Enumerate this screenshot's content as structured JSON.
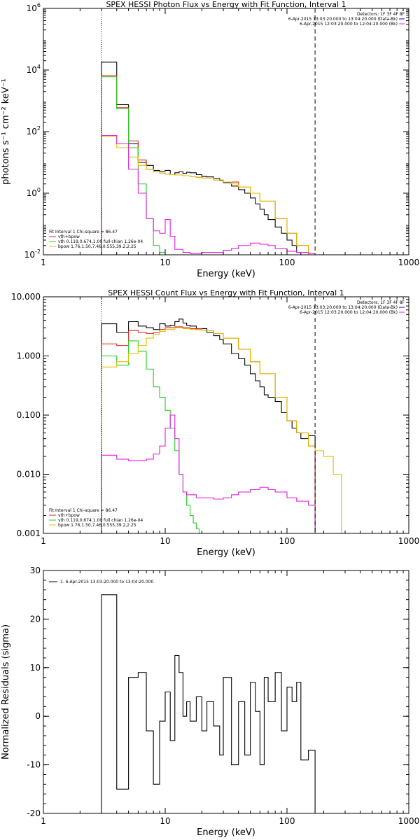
{
  "chart_data": [
    {
      "type": "line",
      "title": "SPEX HESSI Photon Flux vs Energy with Fit Function, Interval 1",
      "xlabel": "Energy (keV)",
      "ylabel": "photons s⁻¹ cm⁻² keV⁻¹",
      "xscale": "log",
      "yscale": "log",
      "xlim": [
        1,
        1000
      ],
      "ylim": [
        0.01,
        1000000
      ],
      "xticks": [
        "1",
        "10",
        "100",
        "1000"
      ],
      "yticks": [
        {
          "value": 0.01,
          "base": "10",
          "exp": "-2"
        },
        {
          "value": 1,
          "base": "10",
          "exp": "0"
        },
        {
          "value": 100,
          "base": "10",
          "exp": "2"
        },
        {
          "value": 10000,
          "base": "10",
          "exp": "4"
        },
        {
          "value": 1000000,
          "base": "10",
          "exp": "6"
        }
      ],
      "vlines": [
        {
          "x": 3,
          "style": "dotted"
        },
        {
          "x": 170,
          "style": "dashed"
        }
      ],
      "legend_top": {
        "header": "Detectors: 1F 3F 4F 8F",
        "entries": [
          {
            "text": "6-Apr-2015 13:03:20.000 to 13:04:20.000 (Data-Bk)",
            "color": "#0000ff"
          },
          {
            "text": "6-Apr-2015 12:03:20.000 to 12:04:20.000 (Bk)",
            "color": "#e020e0"
          }
        ]
      },
      "legend_bottom": {
        "header": "Fit Interval 1    Chi-square = 86.47",
        "entries": [
          {
            "text": "vth+bpow",
            "color": "#e02020"
          },
          {
            "text": "vth 0.119,0.674,1.00   full chian 1.26e-04",
            "color": "#20d020"
          },
          {
            "text": "bpow 1.76,1.50,7.46,0.555,39.2,2.25",
            "color": "#e0c000"
          }
        ]
      },
      "series": [
        {
          "color": "#000000",
          "x": [
            3,
            4,
            5,
            6,
            7,
            8,
            9,
            10,
            11,
            12,
            13,
            14,
            15,
            16,
            18,
            20,
            22,
            25,
            28,
            30,
            35,
            40,
            45,
            50,
            55,
            60,
            65,
            70,
            80,
            90,
            100,
            110,
            120,
            130,
            150,
            170
          ],
          "y": [
            18000,
            750,
            40,
            10,
            8,
            5.5,
            5.2,
            5.5,
            4,
            4.6,
            5,
            4.4,
            4.8,
            4.6,
            4,
            3.5,
            3.4,
            3,
            2.6,
            2.2,
            1.7,
            1.3,
            1,
            0.7,
            0.45,
            0.3,
            0.2,
            0.14,
            0.08,
            0.05,
            0.03,
            0.02,
            0.012,
            0.008,
            0.005,
            0.01
          ]
        },
        {
          "color": "#e02020",
          "x": [
            3,
            4,
            5,
            6,
            7,
            8,
            9,
            10,
            11,
            12,
            14,
            16,
            18,
            20,
            25,
            30,
            40,
            50,
            60,
            80,
            100,
            120,
            150,
            170
          ],
          "y": [
            6500,
            600,
            50,
            12,
            6,
            5,
            4.5,
            4.2,
            4,
            3.9,
            3.7,
            3.5,
            3.3,
            3.1,
            2.7,
            2.3,
            1.6,
            1,
            0.55,
            0.15,
            0.05,
            0.02,
            0.008,
            0.005
          ]
        },
        {
          "color": "#20d020",
          "x": [
            3,
            4,
            5,
            6,
            7,
            8,
            9,
            10
          ],
          "y": [
            6000,
            550,
            30,
            2,
            0.15,
            0.02,
            0.012,
            0.01
          ]
        },
        {
          "color": "#e0c000",
          "x": [
            3,
            4,
            5,
            6,
            7,
            8,
            9,
            10,
            11,
            12,
            14,
            16,
            18,
            20,
            25,
            30,
            35,
            40,
            50,
            60,
            80,
            100,
            120,
            150,
            170,
            200,
            240,
            280
          ],
          "y": [
            70,
            30,
            15,
            8,
            6,
            5,
            4.5,
            4.2,
            4,
            3.9,
            3.7,
            3.5,
            3.3,
            3.1,
            2.7,
            2.3,
            2,
            1.6,
            1,
            0.55,
            0.15,
            0.05,
            0.02,
            0.008,
            0.005,
            0.004,
            0.002,
            0.01
          ]
        },
        {
          "color": "#e020e0",
          "x": [
            3,
            4,
            5,
            6,
            7,
            8,
            9,
            10,
            11,
            12,
            14,
            16,
            18,
            20,
            25,
            30,
            35,
            40,
            50,
            60,
            70,
            80,
            100,
            120,
            150,
            170
          ],
          "y": [
            75,
            40,
            6,
            1,
            0.15,
            0.06,
            0.05,
            0.14,
            0.04,
            0.015,
            0.012,
            0.011,
            0.011,
            0.012,
            0.012,
            0.014,
            0.016,
            0.02,
            0.024,
            0.022,
            0.02,
            0.016,
            0.013,
            0.012,
            0.011,
            0.01
          ]
        }
      ]
    },
    {
      "type": "line",
      "title": "SPEX HESSI Count Flux vs Energy with Fit Function, Interval 1",
      "xlabel": "Energy (keV)",
      "ylabel": "",
      "xscale": "log",
      "yscale": "log",
      "xlim": [
        1,
        1000
      ],
      "ylim": [
        0.001,
        10
      ],
      "xticks": [
        "1",
        "10",
        "100",
        "1000"
      ],
      "yticks": [
        {
          "value": 0.001,
          "label": "0.001"
        },
        {
          "value": 0.01,
          "label": "0.010"
        },
        {
          "value": 0.1,
          "label": "0.100"
        },
        {
          "value": 1,
          "label": "1.000"
        },
        {
          "value": 10,
          "label": "10.000"
        }
      ],
      "vlines": [
        {
          "x": 3,
          "style": "dotted"
        },
        {
          "x": 170,
          "style": "dashed"
        }
      ],
      "legend_top": {
        "header": "Detectors: 1F 3F 4F 8F",
        "entries": [
          {
            "text": "6-Apr-2015 13:03:20.000 to 13:04:20.000 (Data-Bk)",
            "color": "#0000ff"
          },
          {
            "text": "6-Apr-2015 12:03:20.000 to 12:04:20.000 (Bk)",
            "color": "#e020e0"
          }
        ]
      },
      "legend_bottom": {
        "header": "Fit Interval 1    Chi-square = 86.47",
        "entries": [
          {
            "text": "vth+bpow",
            "color": "#e02020"
          },
          {
            "text": "vth 0.119,0.674,1.00   full chian 1.26e-04",
            "color": "#20d020"
          },
          {
            "text": "bpow 1.76,1.50,7.46,0.555,39.2,2.25",
            "color": "#e0c000"
          }
        ]
      },
      "series": [
        {
          "color": "#000000",
          "x": [
            3,
            4,
            5,
            6,
            7,
            8,
            9,
            10,
            11,
            12,
            13,
            14,
            15,
            16,
            18,
            20,
            22,
            25,
            28,
            30,
            35,
            40,
            45,
            50,
            55,
            60,
            65,
            70,
            80,
            90,
            100,
            110,
            120,
            130,
            150,
            170
          ],
          "y": [
            3.5,
            2.5,
            3.8,
            3.2,
            3,
            2.8,
            3.5,
            3.2,
            3.3,
            3.8,
            4.2,
            3.6,
            3.3,
            3.2,
            2.8,
            2.9,
            2.5,
            2.2,
            1.9,
            1.6,
            1.1,
            0.9,
            0.7,
            0.5,
            0.38,
            0.3,
            0.22,
            0.2,
            0.17,
            0.11,
            0.08,
            0.06,
            0.05,
            0.04,
            0.045,
            0.001
          ]
        },
        {
          "color": "#e02020",
          "x": [
            3,
            4,
            5,
            6,
            7,
            8,
            9,
            10,
            12,
            14,
            16,
            20,
            25,
            30,
            40,
            50,
            60,
            80,
            100,
            120,
            150,
            170
          ],
          "y": [
            1.6,
            1.5,
            2.7,
            2.5,
            2.4,
            2.5,
            2.8,
            3,
            3.1,
            3,
            2.9,
            2.7,
            2.4,
            2,
            1.3,
            0.8,
            0.5,
            0.2,
            0.08,
            0.05,
            0.03,
            0.001
          ]
        },
        {
          "color": "#20d020",
          "x": [
            3,
            4,
            5,
            6,
            7,
            8,
            9,
            10,
            11,
            12,
            13,
            14,
            15,
            16,
            17,
            18,
            19
          ],
          "y": [
            1,
            0.7,
            1.8,
            1.2,
            0.6,
            0.3,
            0.2,
            0.12,
            0.06,
            0.025,
            0.01,
            0.005,
            0.003,
            0.002,
            0.0015,
            0.0012,
            0.001
          ]
        },
        {
          "color": "#e0c000",
          "x": [
            3,
            4,
            5,
            6,
            7,
            8,
            9,
            10,
            12,
            14,
            16,
            20,
            25,
            30,
            40,
            50,
            60,
            80,
            100,
            120,
            150,
            170,
            200,
            240,
            280
          ],
          "y": [
            0.65,
            0.8,
            1.1,
            1.5,
            2,
            2.3,
            2.6,
            2.8,
            3,
            2.9,
            2.8,
            2.7,
            2.4,
            2,
            1.3,
            0.8,
            0.5,
            0.2,
            0.08,
            0.05,
            0.03,
            0.025,
            0.02,
            0.01,
            0.001
          ]
        },
        {
          "color": "#e020e0",
          "x": [
            3,
            4,
            5,
            6,
            7,
            8,
            9,
            10,
            11,
            12,
            13,
            14,
            15,
            16,
            18,
            20,
            25,
            30,
            35,
            40,
            50,
            60,
            70,
            80,
            100,
            120,
            150,
            170
          ],
          "y": [
            0.021,
            0.018,
            0.017,
            0.017,
            0.018,
            0.022,
            0.03,
            0.06,
            0.1,
            0.04,
            0.01,
            0.005,
            0.0045,
            0.0045,
            0.004,
            0.004,
            0.0038,
            0.004,
            0.0045,
            0.005,
            0.0055,
            0.006,
            0.0055,
            0.005,
            0.004,
            0.0035,
            0.003,
            0.001
          ]
        }
      ]
    },
    {
      "type": "line",
      "title": "",
      "xlabel": "Energy (keV)",
      "ylabel": "Normalized Residuals (sigma)",
      "xscale": "log",
      "yscale": "linear",
      "xlim": [
        1,
        1000
      ],
      "ylim": [
        -20,
        30
      ],
      "xticks": [
        "1",
        "10",
        "100",
        "1000"
      ],
      "yticks": [
        {
          "value": -20,
          "label": "-20"
        },
        {
          "value": -10,
          "label": "-10"
        },
        {
          "value": 0,
          "label": "0"
        },
        {
          "value": 10,
          "label": "10"
        },
        {
          "value": 20,
          "label": "20"
        },
        {
          "value": 30,
          "label": "30"
        }
      ],
      "vlines": [],
      "legend_top": {
        "header": "",
        "entries": [
          {
            "text": "1.  6-Apr-2015 13:03:20.000 to 13:04:20.000",
            "color": "#000000"
          }
        ]
      },
      "legend_bottom": {
        "header": "",
        "entries": []
      },
      "series": [
        {
          "color": "#000000",
          "x": [
            3,
            4,
            5,
            6,
            7,
            8,
            9,
            10,
            11,
            12,
            13,
            14,
            15,
            16,
            18,
            20,
            22,
            25,
            28,
            30,
            35,
            40,
            45,
            50,
            55,
            60,
            65,
            70,
            80,
            90,
            100,
            110,
            120,
            130,
            150,
            170
          ],
          "y": [
            25,
            -15,
            8,
            9,
            -3,
            -14,
            -1,
            5,
            -5,
            12.5,
            9,
            0,
            3,
            -1,
            4,
            -3,
            3,
            -2,
            -8,
            8,
            -10,
            3,
            -8,
            7,
            1,
            -10,
            8,
            3,
            9,
            -3,
            6,
            3,
            7,
            -9,
            -7,
            -21
          ]
        }
      ]
    }
  ]
}
